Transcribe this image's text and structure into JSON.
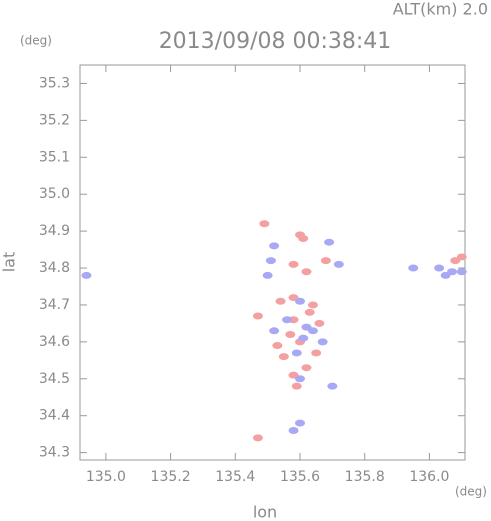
{
  "chart_data": {
    "type": "scatter",
    "title": "2013/09/08 00:38:41",
    "subtitle": "ALT(km) 2.0",
    "y_unit": "(deg)",
    "x_unit": "(deg)",
    "xlabel": "lon",
    "ylabel": "lat",
    "xlim": [
      134.92,
      136.11
    ],
    "ylim": [
      34.28,
      35.35
    ],
    "xticks": [
      {
        "value": 135,
        "label": "135.0"
      },
      135.2,
      135.4,
      135.6,
      135.8,
      {
        "value": 136,
        "label": "136.0"
      }
    ],
    "yticks": [
      34.3,
      34.4,
      34.5,
      34.6,
      34.7,
      34.8,
      34.9,
      {
        "value": 35,
        "label": "35.0"
      },
      35.1,
      35.2,
      35.3
    ],
    "series": [
      {
        "color": "#f4a0a0",
        "x": [
          135.49,
          135.6,
          135.61,
          135.58,
          135.62,
          135.68,
          135.58,
          135.54,
          135.64,
          135.58,
          135.6,
          135.55,
          135.65,
          135.62,
          135.59,
          135.58,
          135.47,
          135.47,
          136.08,
          136.1,
          135.66,
          135.57,
          135.63,
          135.53
        ],
        "y": [
          34.92,
          34.89,
          34.88,
          34.81,
          34.79,
          34.82,
          34.72,
          34.71,
          34.7,
          34.66,
          34.6,
          34.56,
          34.57,
          34.53,
          34.48,
          34.51,
          34.67,
          34.34,
          34.82,
          34.83,
          34.65,
          34.62,
          34.68,
          34.59
        ]
      },
      {
        "color": "#a8a8f4",
        "x": [
          135.52,
          135.51,
          135.69,
          135.72,
          135.56,
          135.62,
          135.52,
          135.67,
          135.61,
          135.6,
          135.7,
          135.6,
          135.58,
          136.03,
          136.07,
          136.05,
          135.95,
          136.1,
          135.64,
          135.59,
          135.5,
          135.6,
          134.94
        ],
        "y": [
          34.86,
          34.82,
          34.87,
          34.81,
          34.66,
          34.64,
          34.63,
          34.6,
          34.61,
          34.5,
          34.48,
          34.38,
          34.36,
          34.8,
          34.79,
          34.78,
          34.8,
          34.79,
          34.63,
          34.57,
          34.78,
          34.71,
          34.78
        ]
      }
    ]
  }
}
